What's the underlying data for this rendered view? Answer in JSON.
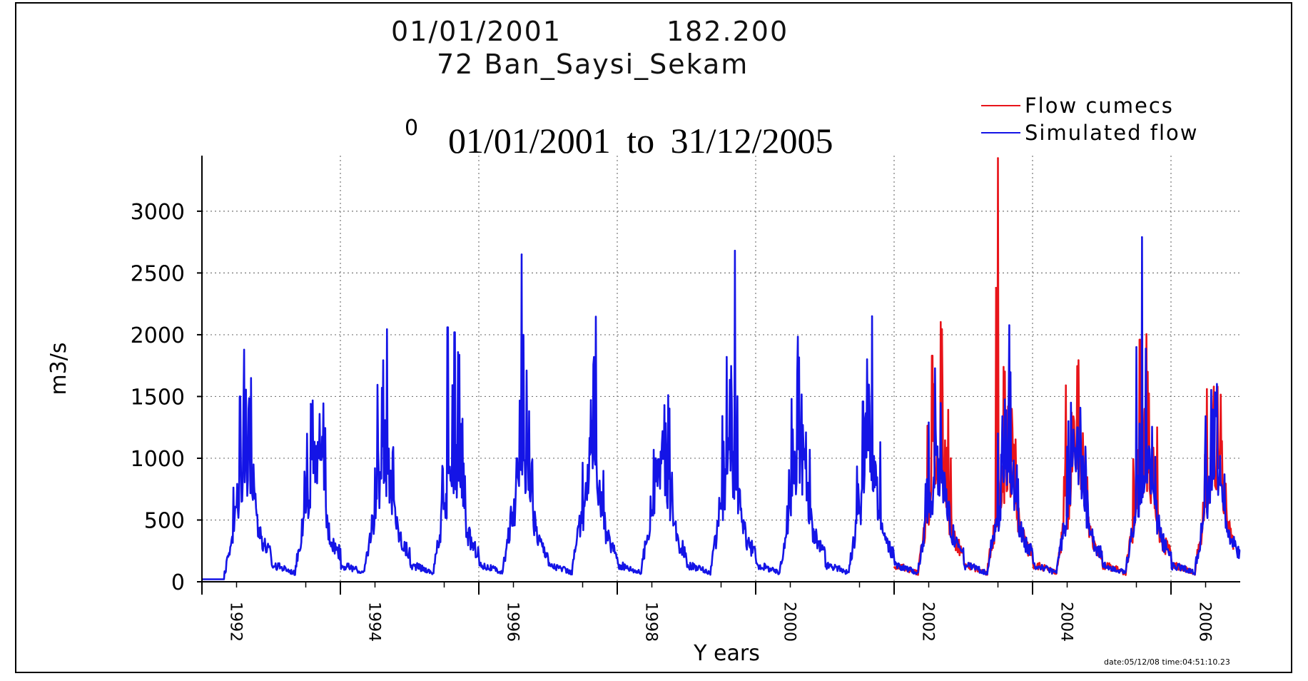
{
  "header": {
    "date": "01/01/2001",
    "value": "182.200",
    "station": "72 Ban_Saysi_Sekam",
    "zero_label": "0",
    "period": "01/01/2001 to 31/12/2005"
  },
  "footer": {
    "timestamp": "date:05/12/08 time:04:51:10.23"
  },
  "colors": {
    "observed": "#e8141a",
    "simulated": "#1414e6",
    "grid": "#777777",
    "axis": "#000000"
  },
  "chart_data": {
    "type": "line",
    "title": "72 Ban_Saysi_Sekam",
    "subtitle": "01/01/2001 to 31/12/2005",
    "xlabel": "Y ears",
    "ylabel": "m3/s",
    "xlim": [
      1991.0,
      2006.0
    ],
    "ylim": [
      0,
      3450
    ],
    "yticks": [
      0,
      500,
      1000,
      1500,
      2000,
      2500,
      3000
    ],
    "ytick_labels": [
      "0",
      "500",
      "1000",
      "1500",
      "2000",
      "2500",
      "3000"
    ],
    "xticks": [
      1992,
      1994,
      1996,
      1998,
      2000,
      2002,
      2004,
      2006
    ],
    "xtick_labels": [
      "1992",
      "1994",
      "1996",
      "1998",
      "2000",
      "2002",
      "2004",
      "2006"
    ],
    "grid": true,
    "legend": "top-right",
    "series": [
      {
        "name": "Flow cumecs",
        "color": "#e8141a",
        "start": 2001.0,
        "end": 2005.9,
        "peaks": [
          {
            "x": 2001.55,
            "y": 1830
          },
          {
            "x": 2001.7,
            "y": 1530
          },
          {
            "x": 2001.82,
            "y": 1000
          },
          {
            "x": 2002.5,
            "y": 3430
          },
          {
            "x": 2002.47,
            "y": 2380
          },
          {
            "x": 2002.65,
            "y": 1420
          },
          {
            "x": 2003.48,
            "y": 1590
          },
          {
            "x": 2003.6,
            "y": 1300
          },
          {
            "x": 2003.7,
            "y": 750
          },
          {
            "x": 2004.55,
            "y": 1960
          },
          {
            "x": 2004.62,
            "y": 1400
          },
          {
            "x": 2004.8,
            "y": 1250
          },
          {
            "x": 2005.52,
            "y": 1560
          },
          {
            "x": 2005.62,
            "y": 1580
          },
          {
            "x": 2005.7,
            "y": 1000
          }
        ]
      },
      {
        "name": "Simulated flow",
        "color": "#1414e6",
        "start": 1991.0,
        "end": 2006.0,
        "peaks": [
          {
            "x": 1991.55,
            "y": 1500
          },
          {
            "x": 1991.63,
            "y": 1030
          },
          {
            "x": 1992.57,
            "y": 1440
          },
          {
            "x": 1992.65,
            "y": 1100
          },
          {
            "x": 1993.6,
            "y": 1570
          },
          {
            "x": 1993.68,
            "y": 1050
          },
          {
            "x": 1994.55,
            "y": 2060
          },
          {
            "x": 1994.65,
            "y": 2020
          },
          {
            "x": 1995.62,
            "y": 2650
          },
          {
            "x": 1995.55,
            "y": 1000
          },
          {
            "x": 1996.62,
            "y": 1470
          },
          {
            "x": 1996.55,
            "y": 800
          },
          {
            "x": 1997.68,
            "y": 1430
          },
          {
            "x": 1997.55,
            "y": 1000
          },
          {
            "x": 1998.58,
            "y": 1820
          },
          {
            "x": 1998.7,
            "y": 2680
          },
          {
            "x": 1999.52,
            "y": 1480
          },
          {
            "x": 1999.6,
            "y": 1680
          },
          {
            "x": 2000.55,
            "y": 1460
          },
          {
            "x": 2000.68,
            "y": 2150
          },
          {
            "x": 2001.5,
            "y": 1290
          },
          {
            "x": 2001.6,
            "y": 1240
          },
          {
            "x": 2002.5,
            "y": 1200
          },
          {
            "x": 2002.55,
            "y": 1030
          },
          {
            "x": 2003.52,
            "y": 1300
          },
          {
            "x": 2003.65,
            "y": 1250
          },
          {
            "x": 2004.5,
            "y": 1900
          },
          {
            "x": 2004.58,
            "y": 2790
          },
          {
            "x": 2005.5,
            "y": 1340
          },
          {
            "x": 2005.65,
            "y": 1340
          }
        ]
      }
    ]
  }
}
